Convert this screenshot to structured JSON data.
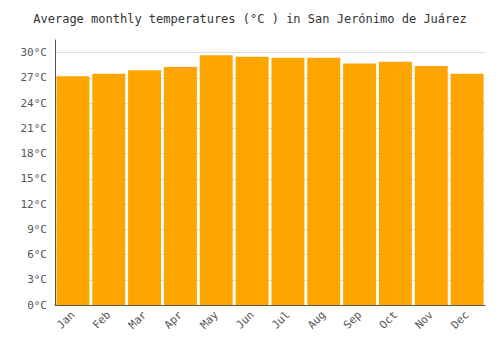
{
  "chart_data": {
    "type": "bar",
    "title": "Average monthly temperatures (°C ) in San Jerónimo de Juárez",
    "categories": [
      "Jan",
      "Feb",
      "Mar",
      "Apr",
      "May",
      "Jun",
      "Jul",
      "Aug",
      "Sep",
      "Oct",
      "Nov",
      "Dec"
    ],
    "values": [
      27.2,
      27.5,
      27.9,
      28.3,
      29.7,
      29.5,
      29.4,
      29.4,
      28.7,
      28.9,
      28.4,
      27.5
    ],
    "color": "#FFA500",
    "ylim": [
      0,
      31.5
    ],
    "yticks": [
      {
        "value": 0,
        "label": "0°C"
      },
      {
        "value": 3,
        "label": "3°C"
      },
      {
        "value": 6,
        "label": "6°C"
      },
      {
        "value": 9,
        "label": "9°C"
      },
      {
        "value": 12,
        "label": "12°C"
      },
      {
        "value": 15,
        "label": "15°C"
      },
      {
        "value": 18,
        "label": "18°C"
      },
      {
        "value": 21,
        "label": "21°C"
      },
      {
        "value": 24,
        "label": "24°C"
      },
      {
        "value": 27,
        "label": "27°C"
      },
      {
        "value": 30,
        "label": "30°C"
      }
    ],
    "grid": true
  }
}
